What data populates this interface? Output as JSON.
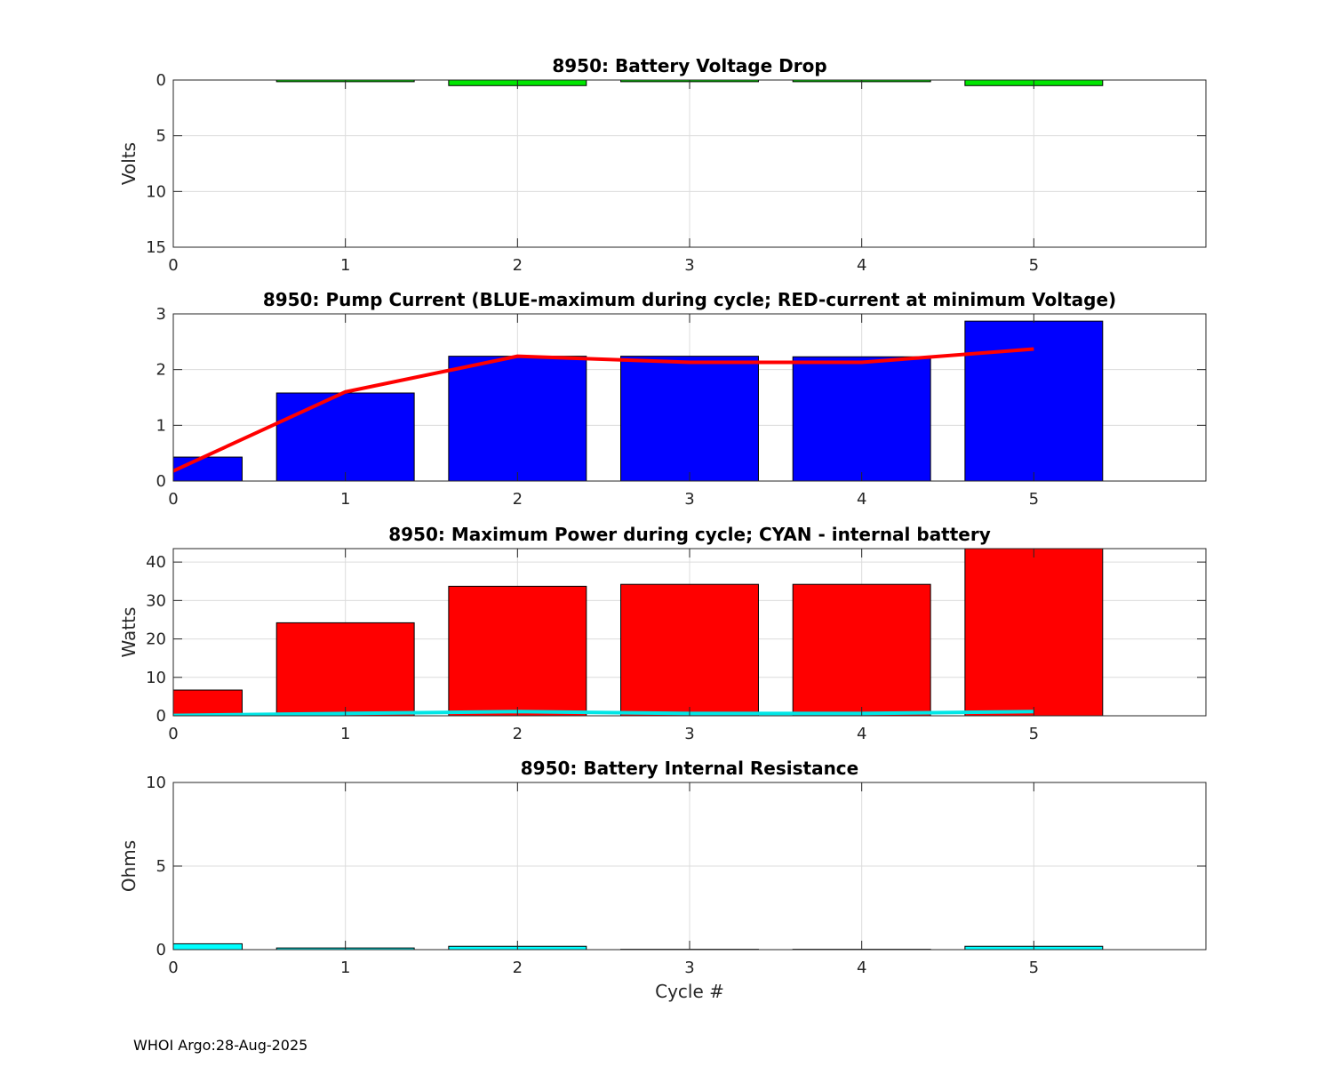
{
  "footer": "WHOI Argo:28-Aug-2025",
  "chart_data": [
    {
      "type": "bar",
      "title": "8950: Battery Voltage Drop",
      "xlabel": "",
      "ylabel": "Volts",
      "xlim": [
        0,
        6
      ],
      "ylim": [
        0,
        15
      ],
      "y_reversed": true,
      "yticks": [
        0,
        5,
        10,
        15
      ],
      "xticks": [
        0,
        1,
        2,
        3,
        4,
        5
      ],
      "grid": true,
      "bar_color": "#00e600",
      "x": [
        0,
        1,
        2,
        3,
        4,
        5
      ],
      "values": [
        0,
        0.15,
        0.5,
        0.15,
        0.15,
        0.5
      ]
    },
    {
      "type": "bar",
      "title": "8950: Pump Current (BLUE-maximum during cycle; RED-current at minimum Voltage)",
      "xlabel": "",
      "ylabel": "",
      "xlim": [
        0,
        6
      ],
      "ylim": [
        0,
        3
      ],
      "yticks": [
        0,
        1,
        2,
        3
      ],
      "xticks": [
        0,
        1,
        2,
        3,
        4,
        5
      ],
      "grid": true,
      "bar_color": "#0000ff",
      "x": [
        0,
        1,
        2,
        3,
        4,
        5
      ],
      "values": [
        0.43,
        1.58,
        2.24,
        2.24,
        2.23,
        2.87
      ],
      "line": {
        "name": "current at minimum Voltage",
        "color": "#ff0000",
        "x": [
          0,
          1,
          2,
          3,
          4,
          5
        ],
        "values": [
          0.18,
          1.6,
          2.24,
          2.13,
          2.13,
          2.37
        ]
      }
    },
    {
      "type": "bar",
      "title": "8950: Maximum Power during cycle; CYAN - internal battery",
      "xlabel": "",
      "ylabel": "Watts",
      "xlim": [
        0,
        6
      ],
      "ylim": [
        0,
        43.5
      ],
      "yticks": [
        0,
        10,
        20,
        30,
        40
      ],
      "xticks": [
        0,
        1,
        2,
        3,
        4,
        5
      ],
      "grid": true,
      "bar_color": "#ff0000",
      "x": [
        0,
        1,
        2,
        3,
        4,
        5
      ],
      "values": [
        6.7,
        24.2,
        33.7,
        34.2,
        34.2,
        43.5
      ],
      "line": {
        "name": "internal battery",
        "color": "#00e6e6",
        "x": [
          0,
          1,
          2,
          3,
          4,
          5
        ],
        "values": [
          0.1,
          0.6,
          1.1,
          0.6,
          0.6,
          1.1
        ]
      }
    },
    {
      "type": "bar",
      "title": "8950: Battery Internal Resistance",
      "xlabel": "Cycle #",
      "ylabel": "Ohms",
      "xlim": [
        0,
        6
      ],
      "ylim": [
        0,
        10
      ],
      "yticks": [
        0,
        5,
        10
      ],
      "xticks": [
        0,
        1,
        2,
        3,
        4,
        5
      ],
      "grid": true,
      "bar_color": "#00ffff",
      "x": [
        0,
        1,
        2,
        3,
        4,
        5
      ],
      "values": [
        0.35,
        0.1,
        0.2,
        0.02,
        0.02,
        0.2
      ]
    }
  ]
}
